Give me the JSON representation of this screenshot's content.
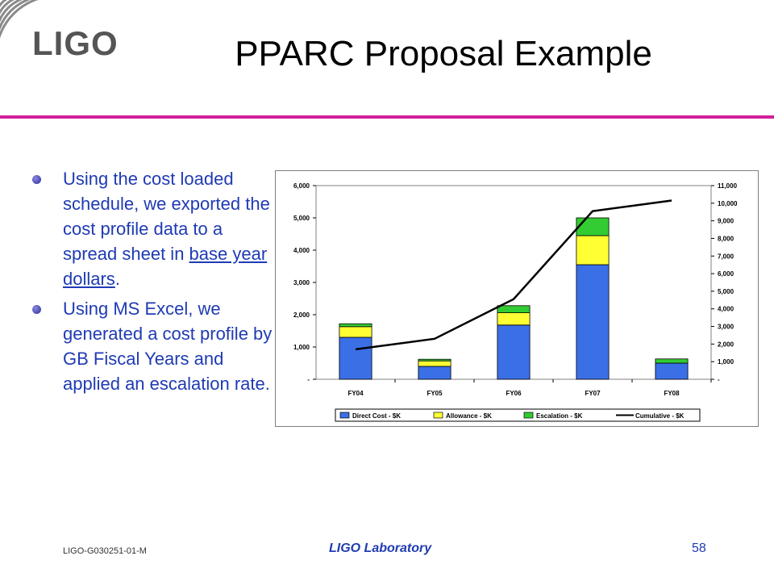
{
  "header": {
    "logo_text": "LIGO",
    "title": "PPARC Proposal Example"
  },
  "bullets": [
    {
      "pre": "Using the cost loaded schedule, we exported the cost profile data to a spread sheet in ",
      "link": "base year dollars",
      "post": "."
    },
    {
      "pre": "Using MS Excel, we generated a cost profile by GB Fiscal Years and applied an escalation rate.",
      "link": "",
      "post": ""
    }
  ],
  "footer": {
    "doc_id": "LIGO-G030251-01-M",
    "org": "LIGO Laboratory",
    "page": "58"
  },
  "colors": {
    "accent_line": "#d21f9b",
    "text_blue": "#1f3bb3",
    "direct": "#3b6fe6",
    "allowance": "#ffff33",
    "escalation": "#33cc33",
    "cumulative": "#000000"
  },
  "chart_data": {
    "type": "bar",
    "stacked": true,
    "categories": [
      "FY04",
      "FY05",
      "FY06",
      "FY07",
      "FY08"
    ],
    "series": [
      {
        "name": "Direct Cost - $K",
        "axis": "left",
        "type": "bar",
        "values": [
          1300,
          400,
          1680,
          3550,
          500
        ]
      },
      {
        "name": "Allowance - $K",
        "axis": "left",
        "type": "bar",
        "values": [
          330,
          170,
          380,
          900,
          0
        ]
      },
      {
        "name": "Escalation - $K",
        "axis": "left",
        "type": "bar",
        "values": [
          90,
          50,
          220,
          550,
          130
        ]
      },
      {
        "name": "Cumulative - $K",
        "axis": "right",
        "type": "line",
        "values": [
          1700,
          2300,
          4550,
          9550,
          10150
        ]
      }
    ],
    "y_left": {
      "min": 0,
      "max": 6000,
      "ticks": [
        "-",
        "1,000",
        "2,000",
        "3,000",
        "4,000",
        "5,000",
        "6,000"
      ]
    },
    "y_right": {
      "min": 0,
      "max": 11000,
      "ticks": [
        "-",
        "1,000",
        "2,000",
        "3,000",
        "4,000",
        "5,000",
        "6,000",
        "7,000",
        "8,000",
        "9,000",
        "10,000",
        "11,000"
      ]
    },
    "legend_position": "bottom",
    "grid": false
  }
}
